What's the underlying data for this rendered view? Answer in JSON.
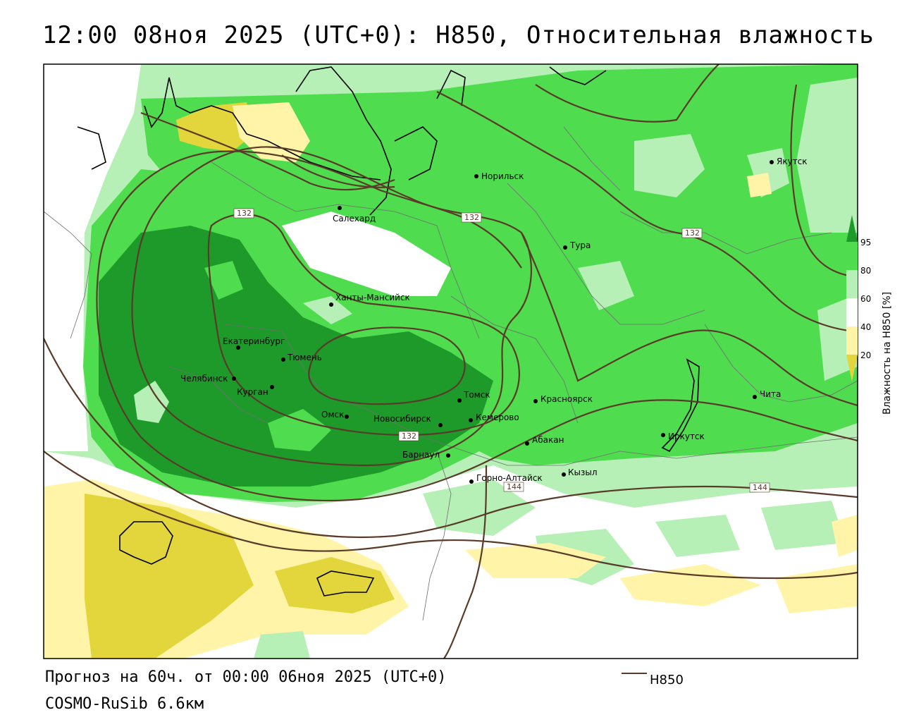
{
  "title": "12:00 08ноя 2025 (UTC+0): H850, Относительная влажность",
  "footer": {
    "forecast": "Прогноз на 60ч. от 00:00 06ноя 2025 (UTC+0)",
    "model": "COSMO-RuSib 6.6км"
  },
  "legend": {
    "line_label": "H850",
    "line_color": "#5a3a28"
  },
  "colorbar": {
    "title": "Влажность на H850 [%]",
    "ticks": [
      "95",
      "80",
      "60",
      "40",
      "20"
    ],
    "colors": [
      "#1e9a2a",
      "#4fdc4f",
      "#b6f0b6",
      "#ffffff",
      "#fff4a8",
      "#e2d63c"
    ]
  },
  "cities": [
    {
      "name": "Норильск"
    },
    {
      "name": "Якутск"
    },
    {
      "name": "Салехард"
    },
    {
      "name": "Тура"
    },
    {
      "name": "Ханты-Мансийск"
    },
    {
      "name": "Екатеринбург"
    },
    {
      "name": "Тюмень"
    },
    {
      "name": "Челябинск"
    },
    {
      "name": "Курган"
    },
    {
      "name": "Томск"
    },
    {
      "name": "Красноярск"
    },
    {
      "name": "Омск"
    },
    {
      "name": "Новосибирск"
    },
    {
      "name": "Кемерово"
    },
    {
      "name": "Абакан"
    },
    {
      "name": "Барнаул"
    },
    {
      "name": "Иркутск"
    },
    {
      "name": "Чита"
    },
    {
      "name": "Горно-Алтайск"
    },
    {
      "name": "Кызыл"
    }
  ],
  "isolines": [
    "132",
    "132",
    "132",
    "132",
    "144",
    "144"
  ]
}
